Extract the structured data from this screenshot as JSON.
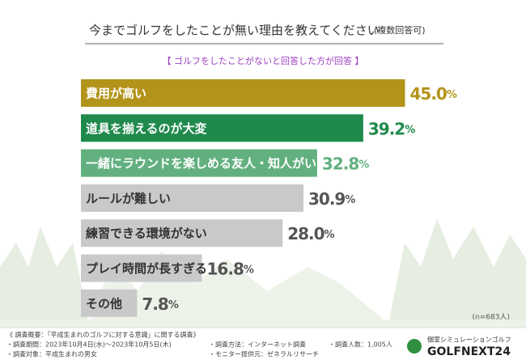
{
  "chart_data": {
    "type": "bar",
    "orientation": "horizontal",
    "title": "今までゴルフをしたことが無い理由を教えてください",
    "title_note": "(複数回答可)",
    "subtitle": "【 ゴルフをしたことがないと回答した方が回答 】",
    "categories": [
      "費用が高い",
      "道具を揃えるのが大変",
      "一緒にラウンドを楽しめる友人・知人がいない",
      "ルールが難しい",
      "練習できる環境がない",
      "プレイ時間が長すぎる",
      "その他"
    ],
    "values": [
      45.0,
      39.2,
      32.8,
      30.9,
      28.0,
      16.8,
      7.8
    ],
    "value_labels": [
      "45.0%",
      "39.2%",
      "32.8%",
      "30.9%",
      "28.0%",
      "16.8%",
      "7.8%"
    ],
    "colors": [
      "#b3941a",
      "#1f8a4c",
      "#62b07f",
      "#c9c9c9",
      "#c9c9c9",
      "#c9c9c9",
      "#c9c9c9"
    ],
    "value_label_colors": [
      "#b3941a",
      "#1f8a4c",
      "#62b07f",
      "#555555",
      "#555555",
      "#555555",
      "#555555"
    ],
    "sample_note": "(n=683人)"
  },
  "footer": {
    "notes": [
      "《 調査概要：「平成生まれのゴルフに対する意識」に関する調査》",
      "・調査期間：2023年10月4日(水)～2023年10月5日(木)",
      "・調査対象：平成生まれの男女",
      "・調査方法：インターネット調査",
      "・モニター提供元：ゼネラルリサーチ",
      "・調査人数：1,005人"
    ],
    "logo_tagline": "個室シミュレーションゴルフ",
    "logo_name": "GOLFNEXT24"
  }
}
